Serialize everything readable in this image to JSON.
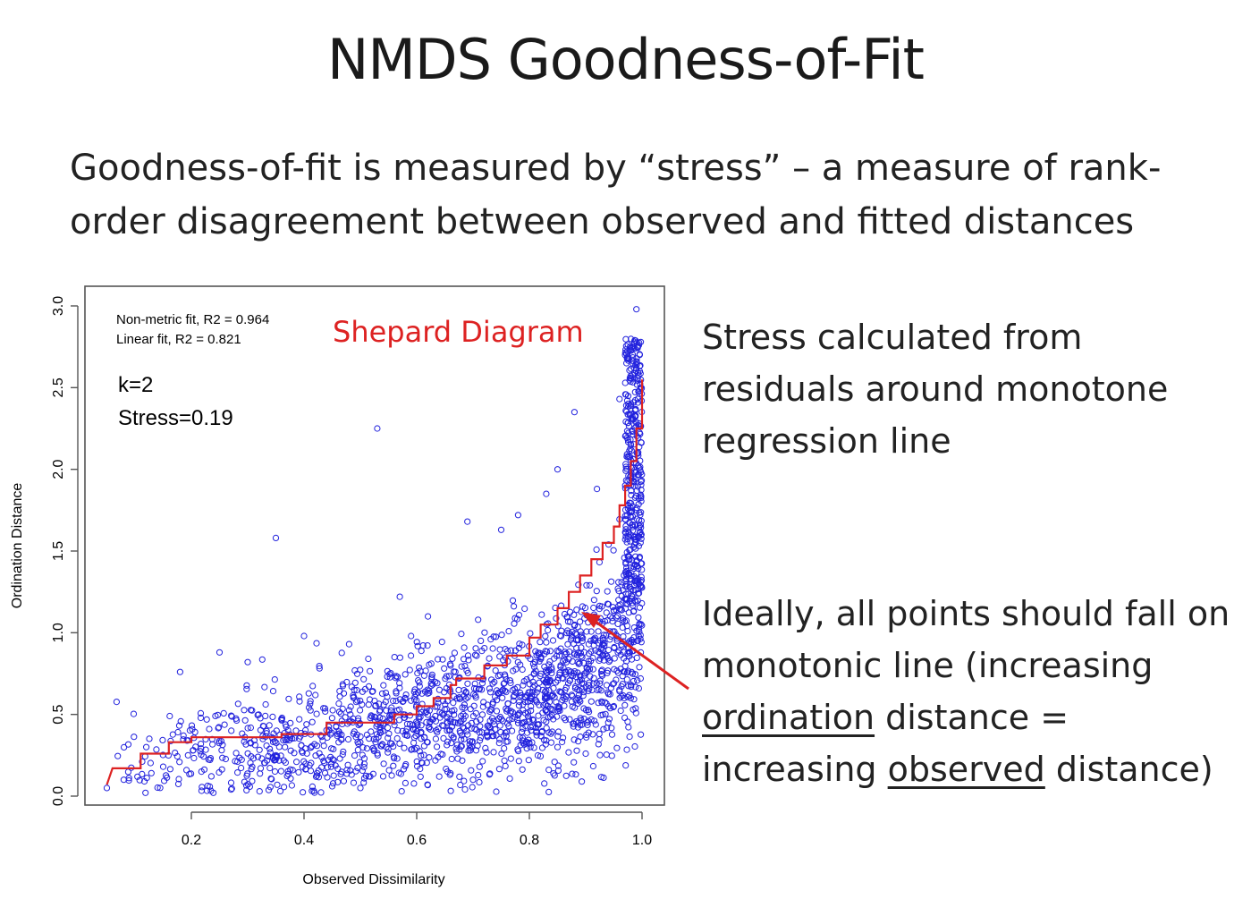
{
  "slide": {
    "title": "NMDS Goodness-of-Fit",
    "intro": "Goodness-of-fit is measured by “stress” – a measure of rank-order disagreement between observed and fitted distances",
    "note1": "Stress calculated from residuals around monotone regression line",
    "note2": {
      "part1": "Ideally, all points should fall on monotonic line (increasing ",
      "u1": "ordination",
      "part2": " distance = increasing ",
      "u2": "observed",
      "part3": " distance)"
    }
  },
  "colors": {
    "points": "#2222dd",
    "step_line": "#dd2222",
    "arrow": "#dd2222",
    "chart_title": "#dd2222"
  },
  "chart_data": {
    "type": "scatter",
    "title": "Shepard Diagram",
    "xlabel": "Observed Dissimilarity",
    "ylabel": "Ordination Distance",
    "xlim": [
      0.05,
      1.0
    ],
    "ylim": [
      0.0,
      3.0
    ],
    "xticks": [
      "0.2",
      "0.4",
      "0.6",
      "0.8",
      "1.0"
    ],
    "yticks": [
      "0.0",
      "0.5",
      "1.0",
      "1.5",
      "2.0",
      "2.5",
      "3.0"
    ],
    "annotations": {
      "fit_nonmetric": "Non-metric fit, R2 = 0.964",
      "fit_linear": "Linear fit, R2 = 0.821",
      "k": "k=2",
      "stress": "Stress=0.19"
    },
    "monotone_fit": [
      [
        0.05,
        0.07
      ],
      [
        0.06,
        0.17
      ],
      [
        0.11,
        0.17
      ],
      [
        0.11,
        0.26
      ],
      [
        0.16,
        0.26
      ],
      [
        0.16,
        0.33
      ],
      [
        0.2,
        0.33
      ],
      [
        0.2,
        0.36
      ],
      [
        0.36,
        0.36
      ],
      [
        0.36,
        0.38
      ],
      [
        0.44,
        0.38
      ],
      [
        0.44,
        0.45
      ],
      [
        0.56,
        0.45
      ],
      [
        0.56,
        0.5
      ],
      [
        0.6,
        0.5
      ],
      [
        0.6,
        0.55
      ],
      [
        0.63,
        0.55
      ],
      [
        0.63,
        0.6
      ],
      [
        0.66,
        0.6
      ],
      [
        0.66,
        0.68
      ],
      [
        0.67,
        0.68
      ],
      [
        0.67,
        0.72
      ],
      [
        0.72,
        0.72
      ],
      [
        0.72,
        0.8
      ],
      [
        0.76,
        0.8
      ],
      [
        0.76,
        0.86
      ],
      [
        0.8,
        0.86
      ],
      [
        0.8,
        0.97
      ],
      [
        0.82,
        0.97
      ],
      [
        0.82,
        1.05
      ],
      [
        0.85,
        1.05
      ],
      [
        0.85,
        1.15
      ],
      [
        0.87,
        1.15
      ],
      [
        0.87,
        1.25
      ],
      [
        0.89,
        1.25
      ],
      [
        0.89,
        1.35
      ],
      [
        0.91,
        1.35
      ],
      [
        0.91,
        1.45
      ],
      [
        0.93,
        1.45
      ],
      [
        0.93,
        1.55
      ],
      [
        0.95,
        1.55
      ],
      [
        0.95,
        1.65
      ],
      [
        0.96,
        1.65
      ],
      [
        0.96,
        1.78
      ],
      [
        0.97,
        1.78
      ],
      [
        0.97,
        1.9
      ],
      [
        0.98,
        1.9
      ],
      [
        0.98,
        2.05
      ],
      [
        0.99,
        2.05
      ],
      [
        0.99,
        2.25
      ],
      [
        1.0,
        2.25
      ],
      [
        1.0,
        2.55
      ]
    ],
    "points": [
      [
        0.35,
        1.58
      ],
      [
        0.53,
        2.25
      ],
      [
        0.69,
        1.68
      ],
      [
        0.75,
        1.63
      ],
      [
        0.78,
        1.72
      ],
      [
        0.62,
        1.1
      ],
      [
        0.57,
        1.22
      ],
      [
        0.59,
        0.98
      ],
      [
        0.4,
        0.98
      ],
      [
        0.25,
        0.88
      ],
      [
        0.3,
        0.82
      ],
      [
        0.18,
        0.76
      ],
      [
        0.48,
        0.93
      ],
      [
        0.12,
        0.3
      ],
      [
        0.15,
        0.18
      ],
      [
        0.05,
        0.05
      ],
      [
        0.08,
        0.1
      ],
      [
        0.85,
        0.3
      ],
      [
        0.9,
        0.26
      ],
      [
        0.95,
        0.55
      ],
      [
        0.98,
        0.6
      ],
      [
        0.92,
        1.88
      ],
      [
        0.97,
        2.7
      ],
      [
        0.99,
        2.98
      ],
      [
        0.96,
        2.43
      ],
      [
        0.88,
        2.35
      ],
      [
        0.85,
        2.0
      ],
      [
        0.83,
        1.85
      ],
      [
        0.5,
        0.05
      ],
      [
        0.58,
        0.08
      ],
      [
        0.45,
        0.06
      ],
      [
        0.64,
        0.12
      ],
      [
        0.7,
        0.1
      ],
      [
        0.94,
        0.45
      ],
      [
        0.86,
        0.72
      ],
      [
        0.78,
        0.5
      ]
    ]
  }
}
